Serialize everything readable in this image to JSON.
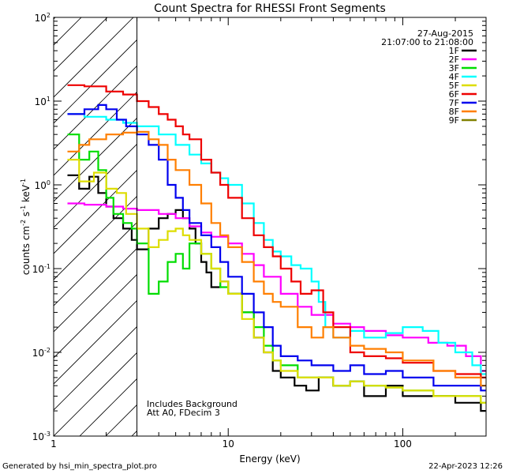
{
  "chart_data": {
    "type": "line",
    "title": "Count Spectra for RHESSI Front Segments",
    "xlabel": "Energy (keV)",
    "ylabel_parts": {
      "base": "counts cm",
      "exp1": "-2",
      "mid1": " s",
      "exp2": "-1",
      "mid2": " keV",
      "exp3": "-1"
    },
    "x_scale": "log",
    "y_scale": "log",
    "xlim": [
      1,
      300
    ],
    "ylim": [
      0.001,
      100
    ],
    "x_ticks": [
      {
        "value": 1,
        "label": "1"
      },
      {
        "value": 10,
        "label": "10"
      },
      {
        "value": 100,
        "label": "100"
      }
    ],
    "y_ticks": [
      {
        "value": 0.001,
        "base": "10",
        "exp": "-3"
      },
      {
        "value": 0.01,
        "base": "10",
        "exp": "-2"
      },
      {
        "value": 0.1,
        "base": "10",
        "exp": "-1"
      },
      {
        "value": 1,
        "base": "10",
        "exp": "0"
      },
      {
        "value": 10,
        "base": "10",
        "exp": "1"
      },
      {
        "value": 100,
        "base": "10",
        "exp": "2"
      }
    ],
    "date": "27-Aug-2015",
    "time_range": "21:07:00 to 21:08:00",
    "attenuator_cutoff_kev": 3,
    "annotations": [
      "Includes Background",
      "Att A0, FDecim 3"
    ],
    "series": [
      {
        "name": "1F",
        "color": "#000000",
        "points": [
          [
            1.2,
            1.3
          ],
          [
            1.4,
            0.9
          ],
          [
            1.6,
            1.25
          ],
          [
            1.8,
            0.8
          ],
          [
            2.0,
            0.55
          ],
          [
            2.2,
            0.4
          ],
          [
            2.5,
            0.3
          ],
          [
            2.8,
            0.22
          ],
          [
            3.0,
            0.17
          ],
          [
            3.5,
            0.3
          ],
          [
            4.0,
            0.4
          ],
          [
            4.5,
            0.45
          ],
          [
            5.0,
            0.5
          ],
          [
            5.5,
            0.4
          ],
          [
            6.0,
            0.3
          ],
          [
            6.5,
            0.2
          ],
          [
            7.0,
            0.12
          ],
          [
            7.5,
            0.09
          ],
          [
            8.0,
            0.06
          ],
          [
            9.0,
            0.07
          ],
          [
            10,
            0.05
          ],
          [
            12,
            0.03
          ],
          [
            14,
            0.015
          ],
          [
            16,
            0.01
          ],
          [
            18,
            0.006
          ],
          [
            20,
            0.005
          ],
          [
            24,
            0.004
          ],
          [
            28,
            0.0035
          ],
          [
            33,
            0.005
          ],
          [
            40,
            0.004
          ],
          [
            50,
            0.0045
          ],
          [
            60,
            0.003
          ],
          [
            80,
            0.004
          ],
          [
            100,
            0.003
          ],
          [
            150,
            0.003
          ],
          [
            200,
            0.0025
          ],
          [
            280,
            0.002
          ]
        ]
      },
      {
        "name": "2F",
        "color": "#ff00ff",
        "points": [
          [
            1.2,
            0.6
          ],
          [
            1.5,
            0.58
          ],
          [
            2.0,
            0.55
          ],
          [
            2.5,
            0.52
          ],
          [
            3.0,
            0.5
          ],
          [
            4.0,
            0.45
          ],
          [
            5.0,
            0.4
          ],
          [
            6.0,
            0.32
          ],
          [
            7.0,
            0.27
          ],
          [
            8.0,
            0.24
          ],
          [
            10,
            0.2
          ],
          [
            12,
            0.15
          ],
          [
            14,
            0.11
          ],
          [
            16,
            0.08
          ],
          [
            20,
            0.05
          ],
          [
            25,
            0.035
          ],
          [
            30,
            0.028
          ],
          [
            40,
            0.022
          ],
          [
            50,
            0.02
          ],
          [
            60,
            0.018
          ],
          [
            80,
            0.016
          ],
          [
            100,
            0.015
          ],
          [
            140,
            0.013
          ],
          [
            180,
            0.012
          ],
          [
            230,
            0.009
          ],
          [
            280,
            0.006
          ]
        ]
      },
      {
        "name": "3F",
        "color": "#00dd00",
        "points": [
          [
            1.2,
            4.0
          ],
          [
            1.4,
            2.0
          ],
          [
            1.6,
            2.5
          ],
          [
            1.8,
            1.5
          ],
          [
            2.0,
            0.7
          ],
          [
            2.2,
            0.45
          ],
          [
            2.5,
            0.35
          ],
          [
            2.8,
            0.3
          ],
          [
            3.0,
            0.2
          ],
          [
            3.5,
            0.05
          ],
          [
            4.0,
            0.07
          ],
          [
            4.5,
            0.12
          ],
          [
            5.0,
            0.15
          ],
          [
            5.5,
            0.1
          ],
          [
            6.0,
            0.2
          ],
          [
            7.0,
            0.15
          ],
          [
            8.0,
            0.1
          ],
          [
            9.0,
            0.06
          ],
          [
            10,
            0.05
          ],
          [
            12,
            0.03
          ],
          [
            14,
            0.02
          ],
          [
            16,
            0.012
          ],
          [
            18,
            0.008
          ],
          [
            20,
            0.007
          ],
          [
            25,
            0.005
          ],
          [
            30,
            0.005
          ],
          [
            40,
            0.004
          ],
          [
            50,
            0.0045
          ],
          [
            60,
            0.004
          ],
          [
            80,
            0.0038
          ],
          [
            100,
            0.0035
          ],
          [
            150,
            0.003
          ],
          [
            200,
            0.003
          ],
          [
            280,
            0.0025
          ]
        ]
      },
      {
        "name": "4F",
        "color": "#00ffff",
        "points": [
          [
            1.2,
            7.0
          ],
          [
            1.5,
            6.5
          ],
          [
            2.0,
            6.0
          ],
          [
            2.5,
            5.5
          ],
          [
            3.0,
            5.0
          ],
          [
            4.0,
            4.0
          ],
          [
            5.0,
            3.0
          ],
          [
            6.0,
            2.3
          ],
          [
            7.0,
            1.8
          ],
          [
            8.0,
            1.4
          ],
          [
            9.0,
            1.2
          ],
          [
            10,
            1.0
          ],
          [
            12,
            0.6
          ],
          [
            14,
            0.35
          ],
          [
            16,
            0.22
          ],
          [
            18,
            0.16
          ],
          [
            20,
            0.14
          ],
          [
            23,
            0.11
          ],
          [
            26,
            0.1
          ],
          [
            30,
            0.07
          ],
          [
            33,
            0.04
          ],
          [
            36,
            0.02
          ],
          [
            40,
            0.015
          ],
          [
            50,
            0.018
          ],
          [
            60,
            0.015
          ],
          [
            80,
            0.017
          ],
          [
            100,
            0.02
          ],
          [
            130,
            0.018
          ],
          [
            160,
            0.013
          ],
          [
            200,
            0.01
          ],
          [
            250,
            0.007
          ],
          [
            280,
            0.0055
          ]
        ]
      },
      {
        "name": "5F",
        "color": "#dddd00",
        "points": [
          [
            1.2,
            2.0
          ],
          [
            1.4,
            1.1
          ],
          [
            1.7,
            1.4
          ],
          [
            2.0,
            0.9
          ],
          [
            2.3,
            0.8
          ],
          [
            2.6,
            0.45
          ],
          [
            3.0,
            0.3
          ],
          [
            3.5,
            0.18
          ],
          [
            4.0,
            0.22
          ],
          [
            4.5,
            0.28
          ],
          [
            5.0,
            0.3
          ],
          [
            5.5,
            0.25
          ],
          [
            6.0,
            0.22
          ],
          [
            7.0,
            0.15
          ],
          [
            8.0,
            0.1
          ],
          [
            9.0,
            0.07
          ],
          [
            10,
            0.05
          ],
          [
            12,
            0.025
          ],
          [
            14,
            0.015
          ],
          [
            16,
            0.01
          ],
          [
            18,
            0.008
          ],
          [
            20,
            0.006
          ],
          [
            25,
            0.005
          ],
          [
            30,
            0.005
          ],
          [
            40,
            0.004
          ],
          [
            50,
            0.0045
          ],
          [
            60,
            0.004
          ],
          [
            80,
            0.0038
          ],
          [
            100,
            0.0035
          ],
          [
            150,
            0.003
          ],
          [
            200,
            0.003
          ],
          [
            280,
            0.0025
          ]
        ]
      },
      {
        "name": "6F",
        "color": "#ee0000",
        "points": [
          [
            1.2,
            15.5
          ],
          [
            1.5,
            15.0
          ],
          [
            2.0,
            13.0
          ],
          [
            2.5,
            12.0
          ],
          [
            3.0,
            10.0
          ],
          [
            3.5,
            8.5
          ],
          [
            4.0,
            7.0
          ],
          [
            4.5,
            6.0
          ],
          [
            5.0,
            5.0
          ],
          [
            5.5,
            4.0
          ],
          [
            6.0,
            3.5
          ],
          [
            7.0,
            2.0
          ],
          [
            8.0,
            1.4
          ],
          [
            9.0,
            1.0
          ],
          [
            10,
            0.7
          ],
          [
            12,
            0.4
          ],
          [
            14,
            0.25
          ],
          [
            16,
            0.18
          ],
          [
            18,
            0.14
          ],
          [
            20,
            0.1
          ],
          [
            23,
            0.07
          ],
          [
            26,
            0.05
          ],
          [
            30,
            0.055
          ],
          [
            35,
            0.03
          ],
          [
            40,
            0.02
          ],
          [
            50,
            0.01
          ],
          [
            60,
            0.009
          ],
          [
            80,
            0.0085
          ],
          [
            100,
            0.0075
          ],
          [
            150,
            0.006
          ],
          [
            200,
            0.0055
          ],
          [
            280,
            0.005
          ]
        ]
      },
      {
        "name": "7F",
        "color": "#0000ee",
        "points": [
          [
            1.2,
            7.0
          ],
          [
            1.5,
            8.0
          ],
          [
            1.8,
            9.0
          ],
          [
            2.0,
            8.0
          ],
          [
            2.3,
            6.0
          ],
          [
            2.6,
            5.0
          ],
          [
            3.0,
            4.0
          ],
          [
            3.5,
            3.0
          ],
          [
            4.0,
            2.0
          ],
          [
            4.5,
            1.0
          ],
          [
            5.0,
            0.7
          ],
          [
            5.5,
            0.5
          ],
          [
            6.0,
            0.35
          ],
          [
            7.0,
            0.25
          ],
          [
            8.0,
            0.18
          ],
          [
            9.0,
            0.12
          ],
          [
            10,
            0.08
          ],
          [
            12,
            0.05
          ],
          [
            14,
            0.03
          ],
          [
            16,
            0.02
          ],
          [
            18,
            0.012
          ],
          [
            20,
            0.009
          ],
          [
            25,
            0.008
          ],
          [
            30,
            0.007
          ],
          [
            40,
            0.006
          ],
          [
            50,
            0.007
          ],
          [
            60,
            0.0055
          ],
          [
            80,
            0.006
          ],
          [
            100,
            0.005
          ],
          [
            150,
            0.004
          ],
          [
            200,
            0.004
          ],
          [
            280,
            0.0035
          ]
        ]
      },
      {
        "name": "8F",
        "color": "#ff7f00",
        "points": [
          [
            1.2,
            2.5
          ],
          [
            1.4,
            3.0
          ],
          [
            1.6,
            3.5
          ],
          [
            2.0,
            4.0
          ],
          [
            2.5,
            4.2
          ],
          [
            3.0,
            4.3
          ],
          [
            3.5,
            3.5
          ],
          [
            4.0,
            3.0
          ],
          [
            4.5,
            2.0
          ],
          [
            5.0,
            1.5
          ],
          [
            6.0,
            1.0
          ],
          [
            7.0,
            0.6
          ],
          [
            8.0,
            0.35
          ],
          [
            9.0,
            0.25
          ],
          [
            10,
            0.18
          ],
          [
            12,
            0.12
          ],
          [
            14,
            0.07
          ],
          [
            16,
            0.05
          ],
          [
            18,
            0.04
          ],
          [
            20,
            0.035
          ],
          [
            25,
            0.02
          ],
          [
            30,
            0.015
          ],
          [
            35,
            0.02
          ],
          [
            40,
            0.015
          ],
          [
            50,
            0.012
          ],
          [
            60,
            0.011
          ],
          [
            80,
            0.01
          ],
          [
            100,
            0.008
          ],
          [
            150,
            0.006
          ],
          [
            200,
            0.005
          ],
          [
            280,
            0.004
          ]
        ]
      },
      {
        "name": "9F",
        "color": "#808000",
        "points": []
      }
    ]
  },
  "footer": {
    "left": "Generated by hsi_min_spectra_plot.pro",
    "right": "22-Apr-2023 12:26"
  }
}
